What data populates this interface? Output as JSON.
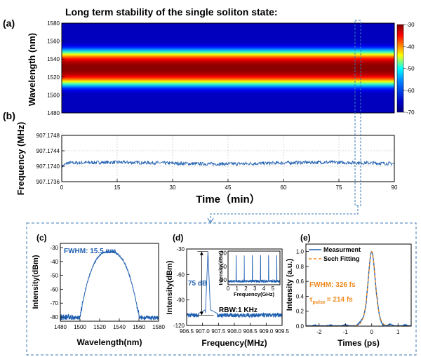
{
  "figure_title": "Long term stability of the single soliton state:",
  "panel_labels": {
    "a": "(a)",
    "b": "(b)",
    "c": "(c)",
    "d": "(d)",
    "e": "(e)"
  },
  "colors": {
    "trace": "#1f5fb0",
    "fit": "#f08a1c",
    "box": "#3b78b5"
  },
  "chart_data": [
    {
      "id": "a",
      "type": "heatmap",
      "ylabel": "Wavelength (nm)",
      "ylim": [
        1480,
        1580
      ],
      "yticks": [
        1480,
        1500,
        1520,
        1540,
        1560,
        1580
      ],
      "xlim": [
        0,
        90
      ],
      "z_center_nm": 1530,
      "z_peak_dB": -30,
      "z_floor_dB": -70,
      "colorbar": {
        "ticks": [
          -30,
          -40,
          -50,
          -60,
          -70
        ],
        "min": -70,
        "max": -30
      }
    },
    {
      "id": "b",
      "type": "line",
      "xlabel": "Time（min）",
      "ylabel": "Frequency (MHz)",
      "xlim": [
        0,
        90
      ],
      "ylim": [
        907.1736,
        907.1748
      ],
      "xticks": [
        0,
        15,
        30,
        45,
        60,
        75,
        90
      ],
      "yticks": [
        "907.1736",
        "907.1740",
        "907.1744",
        "907.1748"
      ],
      "mean_MHz": 907.17408,
      "grid": true
    },
    {
      "id": "c",
      "type": "line",
      "xlabel": "Wavelength(nm)",
      "ylabel": "Intensity(dBm)",
      "xlim": [
        1480,
        1580
      ],
      "ylim": [
        -83,
        -27
      ],
      "xticks": [
        1480,
        1500,
        1520,
        1540,
        1560,
        1580
      ],
      "yticks": [
        -30,
        -40,
        -50,
        -60,
        -70,
        -80
      ],
      "annotation": "FWHM: 15.5 nm",
      "center_nm": 1530,
      "peak_dBm": -33
    },
    {
      "id": "d",
      "type": "line",
      "xlabel": "Frequency(MHz)",
      "ylabel": "Intensity(dBm)",
      "xlim": [
        906.5,
        909.5
      ],
      "ylim": [
        -120,
        -30
      ],
      "xticks": [
        "906.5",
        "907.0",
        "907.5",
        "908.0",
        "908.5",
        "909.0",
        "909.5"
      ],
      "yticks": [
        -30,
        -60,
        -90,
        -120
      ],
      "peak_MHz": 907.17,
      "peak_dBm": -33,
      "floor_dBm": -108,
      "annotations": {
        "snr": "75 dB",
        "rbw": "RBW:1 KHz"
      },
      "inset": {
        "xlabel": "Frequency(GHz)",
        "ylabel": "Intensity(dBm)",
        "xticks": [
          0,
          1,
          2,
          3,
          4,
          5
        ],
        "yticks": [
          -30,
          -60,
          -90
        ],
        "xlim": [
          0,
          5.8
        ],
        "ylim": [
          -100,
          -25
        ],
        "lines_GHz": [
          0.907,
          1.814,
          2.722,
          3.629,
          4.536,
          5.443
        ],
        "line_peak_dBm": -35,
        "floor_dBm": -92
      }
    },
    {
      "id": "e",
      "type": "line",
      "xlabel": "Times (ps)",
      "ylabel": "Intensity (a.u.)",
      "xlim": [
        -2.5,
        1.5
      ],
      "ylim": [
        0,
        1.1
      ],
      "xticks": [
        -2,
        -1,
        0,
        1
      ],
      "yticks": [
        "0.0",
        "0.2",
        "0.4",
        "0.6",
        "0.8",
        "1.0"
      ],
      "legend": {
        "measured": "Measurment",
        "fit": "Sech Fitting",
        "position": "top-right"
      },
      "annotations": {
        "fwhm": "FWHM: 326 fs",
        "tau_symbol": "τ",
        "tau_sub": "pulse",
        "tau_value": "= 214 fs"
      },
      "fwhm_fs": 326
    }
  ]
}
